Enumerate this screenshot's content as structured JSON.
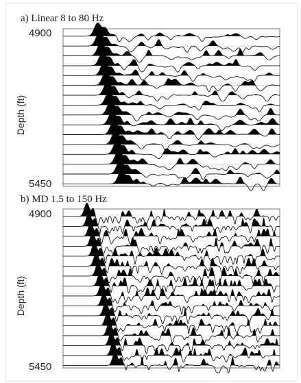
{
  "chart_data": [
    {
      "type": "seismic-wiggle",
      "title": "a) Linear 8 to 80 Hz",
      "ylabel": "Depth (ft)",
      "depth_top_label": "4900",
      "depth_bottom_label": "5450",
      "ylim": [
        4900,
        5450
      ],
      "trace_count": 16,
      "first_arrival_start_fraction": 0.16,
      "first_arrival_end_fraction": 0.27,
      "character": "smooth",
      "colors": {
        "trace": "#111111",
        "fill": "#000000",
        "box": "#777777"
      }
    },
    {
      "type": "seismic-wiggle",
      "title": "b) MD 1.5 to 150 Hz",
      "ylabel": "Depth (ft)",
      "depth_top_label": "4900",
      "depth_bottom_label": "5450",
      "ylim": [
        4900,
        5450
      ],
      "trace_count": 16,
      "first_arrival_start_fraction": 0.11,
      "first_arrival_end_fraction": 0.24,
      "character": "spiky",
      "colors": {
        "trace": "#111111",
        "fill": "#000000",
        "box": "#777777"
      }
    }
  ]
}
